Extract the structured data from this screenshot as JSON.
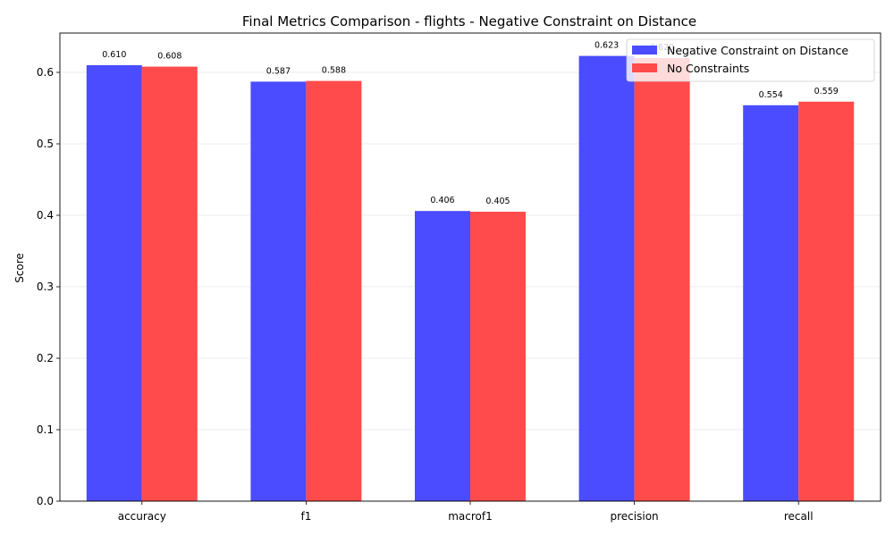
{
  "chart_data": {
    "type": "bar",
    "title": "Final Metrics Comparison - flights - Negative Constraint on Distance",
    "xlabel": "",
    "ylabel": "Score",
    "categories": [
      "accuracy",
      "f1",
      "macrof1",
      "precision",
      "recall"
    ],
    "series": [
      {
        "name": "Negative Constraint on Distance",
        "values": [
          0.61,
          0.587,
          0.406,
          0.623,
          0.554
        ],
        "labels": [
          "0.610",
          "0.587",
          "0.406",
          "0.623",
          "0.554"
        ],
        "color": "#4b4bff"
      },
      {
        "name": "No Constraints",
        "values": [
          0.608,
          0.588,
          0.405,
          0.62,
          0.559
        ],
        "labels": [
          "0.608",
          "0.588",
          "0.405",
          "0.620",
          "0.559"
        ],
        "color": "#ff4b4b"
      }
    ],
    "ylim": [
      0,
      0.655
    ],
    "yticks": [
      "0.0",
      "0.1",
      "0.2",
      "0.3",
      "0.4",
      "0.5",
      "0.6"
    ],
    "grid": "y",
    "legend": "top-right"
  }
}
